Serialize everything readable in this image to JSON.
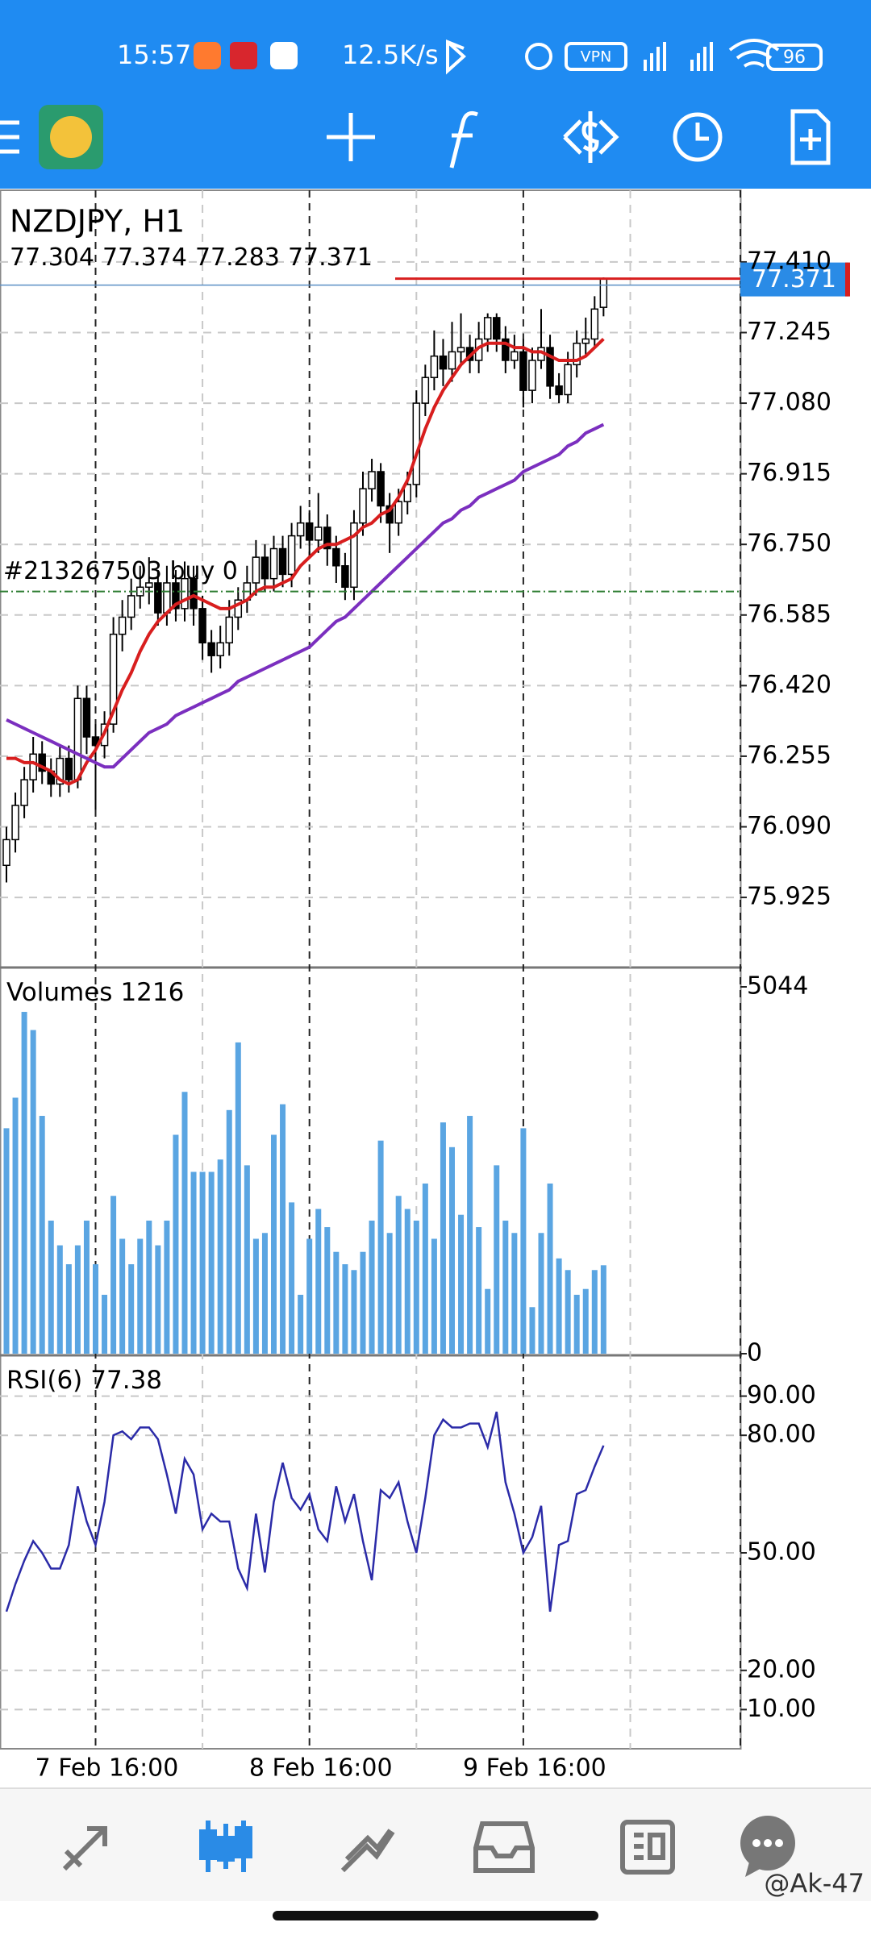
{
  "status_bar": {
    "time": "15:57",
    "speed": "12.5K/s",
    "vpn": "VPN",
    "battery": "96"
  },
  "chart_data": [
    {
      "type": "candlestick",
      "title": "NZDJPY, H1",
      "open": [
        76.0,
        76.06,
        76.14,
        76.2,
        76.26,
        76.22,
        76.19,
        76.25,
        76.2,
        76.39,
        76.3,
        76.28,
        76.33,
        76.54,
        76.58,
        76.63,
        76.65,
        76.66,
        76.59,
        76.66,
        76.6,
        76.67,
        76.6,
        76.52,
        76.49,
        76.52,
        76.58,
        76.62,
        76.66,
        76.72,
        76.67,
        76.74,
        76.68,
        76.77,
        76.8,
        76.76,
        76.79,
        76.74,
        76.7,
        76.65,
        76.8,
        76.88,
        76.92,
        76.84,
        76.8,
        76.85,
        76.89,
        77.08,
        77.14,
        77.19,
        77.16,
        77.2,
        77.21,
        77.18,
        77.23,
        77.28,
        77.23,
        77.18,
        77.2,
        77.11,
        77.18,
        77.21,
        77.12,
        77.1,
        77.17,
        77.22,
        77.23,
        77.304
      ],
      "high": [
        76.09,
        76.17,
        76.23,
        76.3,
        76.29,
        76.25,
        76.28,
        76.28,
        76.42,
        76.42,
        76.33,
        76.36,
        76.58,
        76.62,
        76.67,
        76.7,
        76.72,
        76.69,
        76.7,
        76.69,
        76.71,
        76.7,
        76.63,
        76.55,
        76.56,
        76.62,
        76.65,
        76.7,
        76.76,
        76.75,
        76.77,
        76.77,
        76.8,
        76.84,
        76.83,
        76.87,
        76.82,
        76.77,
        76.73,
        76.83,
        76.92,
        76.95,
        76.94,
        76.87,
        76.88,
        76.92,
        77.11,
        77.17,
        77.25,
        77.23,
        77.27,
        77.29,
        77.24,
        77.27,
        77.29,
        77.29,
        77.26,
        77.24,
        77.23,
        77.21,
        77.3,
        77.24,
        77.15,
        77.2,
        77.25,
        77.28,
        77.33,
        77.374
      ],
      "low": [
        75.96,
        76.03,
        76.11,
        76.17,
        76.19,
        76.16,
        76.16,
        76.17,
        76.18,
        76.26,
        76.13,
        76.25,
        76.31,
        76.5,
        76.55,
        76.6,
        76.61,
        76.56,
        76.56,
        76.57,
        76.57,
        76.56,
        76.48,
        76.45,
        76.46,
        76.49,
        76.55,
        76.59,
        76.63,
        76.64,
        76.64,
        76.65,
        76.65,
        76.74,
        76.72,
        76.73,
        76.7,
        76.66,
        76.62,
        76.62,
        76.77,
        76.85,
        76.8,
        76.73,
        76.77,
        76.82,
        76.86,
        77.05,
        77.11,
        77.12,
        77.13,
        77.17,
        77.15,
        77.15,
        77.2,
        77.2,
        77.15,
        77.16,
        77.07,
        77.08,
        77.16,
        77.09,
        77.08,
        77.08,
        77.14,
        77.19,
        77.21,
        77.283
      ],
      "close": [
        76.06,
        76.14,
        76.2,
        76.26,
        76.22,
        76.19,
        76.25,
        76.2,
        76.39,
        76.3,
        76.28,
        76.33,
        76.54,
        76.58,
        76.63,
        76.65,
        76.66,
        76.59,
        76.66,
        76.6,
        76.67,
        76.6,
        76.52,
        76.49,
        76.52,
        76.58,
        76.62,
        76.66,
        76.72,
        76.67,
        76.74,
        76.68,
        76.77,
        76.8,
        76.76,
        76.79,
        76.74,
        76.7,
        76.65,
        76.8,
        76.88,
        76.92,
        76.84,
        76.8,
        76.85,
        76.89,
        77.08,
        77.14,
        77.19,
        77.16,
        77.2,
        77.21,
        77.18,
        77.23,
        77.28,
        77.23,
        77.18,
        77.2,
        77.11,
        77.18,
        77.21,
        77.12,
        77.1,
        77.17,
        77.22,
        77.23,
        77.3,
        77.371
      ],
      "moving_averages": [
        {
          "color": "#d81e1e",
          "values": [
            76.25,
            76.25,
            76.24,
            76.24,
            76.23,
            76.22,
            76.2,
            76.19,
            76.2,
            76.24,
            76.27,
            76.31,
            76.36,
            76.41,
            76.45,
            76.5,
            76.54,
            76.57,
            76.59,
            76.61,
            76.62,
            76.63,
            76.62,
            76.61,
            76.6,
            76.6,
            76.61,
            76.62,
            76.64,
            76.65,
            76.65,
            76.66,
            76.67,
            76.7,
            76.72,
            76.74,
            76.75,
            76.75,
            76.76,
            76.77,
            76.79,
            76.8,
            76.82,
            76.83,
            76.86,
            76.9,
            76.96,
            77.02,
            77.07,
            77.11,
            77.14,
            77.17,
            77.19,
            77.21,
            77.22,
            77.22,
            77.22,
            77.21,
            77.21,
            77.2,
            77.2,
            77.19,
            77.18,
            77.18,
            77.18,
            77.19,
            77.21,
            77.23
          ]
        },
        {
          "color": "#7b2fbf",
          "values": [
            76.34,
            76.33,
            76.32,
            76.31,
            76.3,
            76.29,
            76.28,
            76.27,
            76.26,
            76.25,
            76.24,
            76.23,
            76.23,
            76.25,
            76.27,
            76.29,
            76.31,
            76.32,
            76.33,
            76.35,
            76.36,
            76.37,
            76.38,
            76.39,
            76.4,
            76.41,
            76.43,
            76.44,
            76.45,
            76.46,
            76.47,
            76.48,
            76.49,
            76.5,
            76.51,
            76.53,
            76.55,
            76.57,
            76.58,
            76.6,
            76.62,
            76.64,
            76.66,
            76.68,
            76.7,
            76.72,
            76.74,
            76.76,
            76.78,
            76.8,
            76.81,
            76.83,
            76.84,
            76.86,
            76.87,
            76.88,
            76.89,
            76.9,
            76.92,
            76.93,
            76.94,
            76.95,
            76.96,
            76.98,
            76.99,
            77.01,
            77.02,
            77.03
          ]
        }
      ],
      "order_label": "#213267503 buy 0",
      "order_price": 76.64,
      "ylim": [
        75.765,
        77.57
      ],
      "yticks": [
        {
          "value": 75.925,
          "label": "75.925"
        },
        {
          "value": 76.09,
          "label": "76.090"
        },
        {
          "value": 76.255,
          "label": "76.255"
        },
        {
          "value": 76.42,
          "label": "76.420"
        },
        {
          "value": 76.585,
          "label": "76.585"
        },
        {
          "value": 76.75,
          "label": "76.750"
        },
        {
          "value": 76.915,
          "label": "76.915"
        },
        {
          "value": 77.08,
          "label": "77.080"
        },
        {
          "value": 77.245,
          "label": "77.245"
        },
        {
          "value": 77.41,
          "label": "77.410"
        }
      ],
      "grid": true
    },
    {
      "type": "bar",
      "title": "Volumes",
      "color": "#5aa5e2",
      "values": [
        3100,
        3520,
        4700,
        4450,
        3270,
        1830,
        1490,
        1230,
        1490,
        1830,
        1230,
        810,
        2170,
        1580,
        1230,
        1580,
        1830,
        1490,
        1830,
        3010,
        3600,
        2500,
        2500,
        2500,
        2670,
        3350,
        4280,
        2590,
        1580,
        1660,
        3010,
        3430,
        2080,
        810,
        1580,
        1990,
        1740,
        1400,
        1230,
        1150,
        1400,
        1830,
        2930,
        1660,
        2170,
        1990,
        1830,
        2340,
        1580,
        3180,
        2840,
        1910,
        3270,
        1740,
        890,
        2590,
        1830,
        1660,
        3100,
        640,
        1660,
        2340,
        1310,
        1150,
        810,
        890,
        1150,
        1216
      ],
      "ylim": [
        0,
        5044
      ],
      "yticks": [
        0,
        5044
      ]
    },
    {
      "type": "line",
      "title": "RSI(6)",
      "color": "#2b2ba8",
      "values": [
        35,
        42,
        48,
        53,
        50,
        46,
        46,
        52,
        67,
        58,
        52,
        63,
        80,
        81,
        79,
        82,
        82,
        79,
        70,
        60,
        74,
        70,
        56,
        60,
        58,
        58,
        46,
        41,
        60,
        45,
        63,
        73,
        64,
        61,
        65,
        56,
        53,
        67,
        58,
        65,
        53,
        43,
        66,
        64,
        68,
        58,
        50,
        64,
        80,
        84,
        82,
        82,
        83,
        83,
        77,
        86,
        68,
        60,
        50,
        54,
        62,
        35,
        52,
        53,
        65,
        66,
        72,
        77.38
      ],
      "categories": [
        null,
        null,
        null,
        null,
        null,
        null,
        null,
        null,
        null,
        null,
        "7 Feb 16:00",
        null,
        null,
        null,
        null,
        null,
        null,
        null,
        null,
        null,
        null,
        null,
        null,
        null,
        null,
        null,
        null,
        null,
        null,
        null,
        null,
        null,
        null,
        null,
        "8 Feb 16:00",
        null,
        null,
        null,
        null,
        null,
        null,
        null,
        null,
        null,
        null,
        null,
        null,
        null,
        null,
        null,
        null,
        null,
        null,
        null,
        null,
        null,
        null,
        null,
        "9 Feb 16:00",
        null,
        null,
        null,
        null,
        null,
        null,
        null,
        null,
        null
      ],
      "ylim": [
        0,
        100
      ],
      "yticks": [
        {
          "value": 10,
          "label": "10.00"
        },
        {
          "value": 20,
          "label": "20.00"
        },
        {
          "value": 50,
          "label": "50.00"
        },
        {
          "value": 80,
          "label": "80.00"
        },
        {
          "value": 90,
          "label": "90.00"
        }
      ],
      "grid": true
    }
  ],
  "watermark": "@Ak-47"
}
